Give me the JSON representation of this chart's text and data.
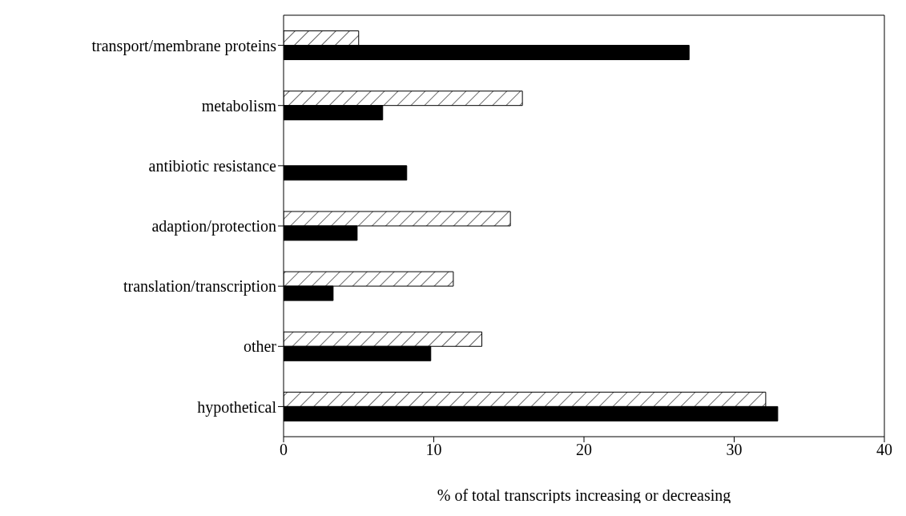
{
  "chart_data": {
    "type": "bar",
    "orientation": "horizontal",
    "xlabel": "% of total transcripts increasing or decreasing",
    "categories": [
      "transport/membrane proteins",
      "metabolism",
      "antibiotic resistance",
      "adaption/protection",
      "translation/transcription",
      "other",
      "hypothetical"
    ],
    "series": [
      {
        "color": "#000000",
        "values": [
          5.0,
          15.9,
          null,
          15.1,
          11.3,
          13.2,
          32.1
        ]
      },
      {
        "color": "#000000",
        "values": [
          27.0,
          6.6,
          8.2,
          4.9,
          3.3,
          9.8,
          32.9
        ]
      }
    ],
    "xlim": [
      0,
      40
    ],
    "xticks": [
      0,
      10,
      20,
      30,
      40
    ]
  }
}
